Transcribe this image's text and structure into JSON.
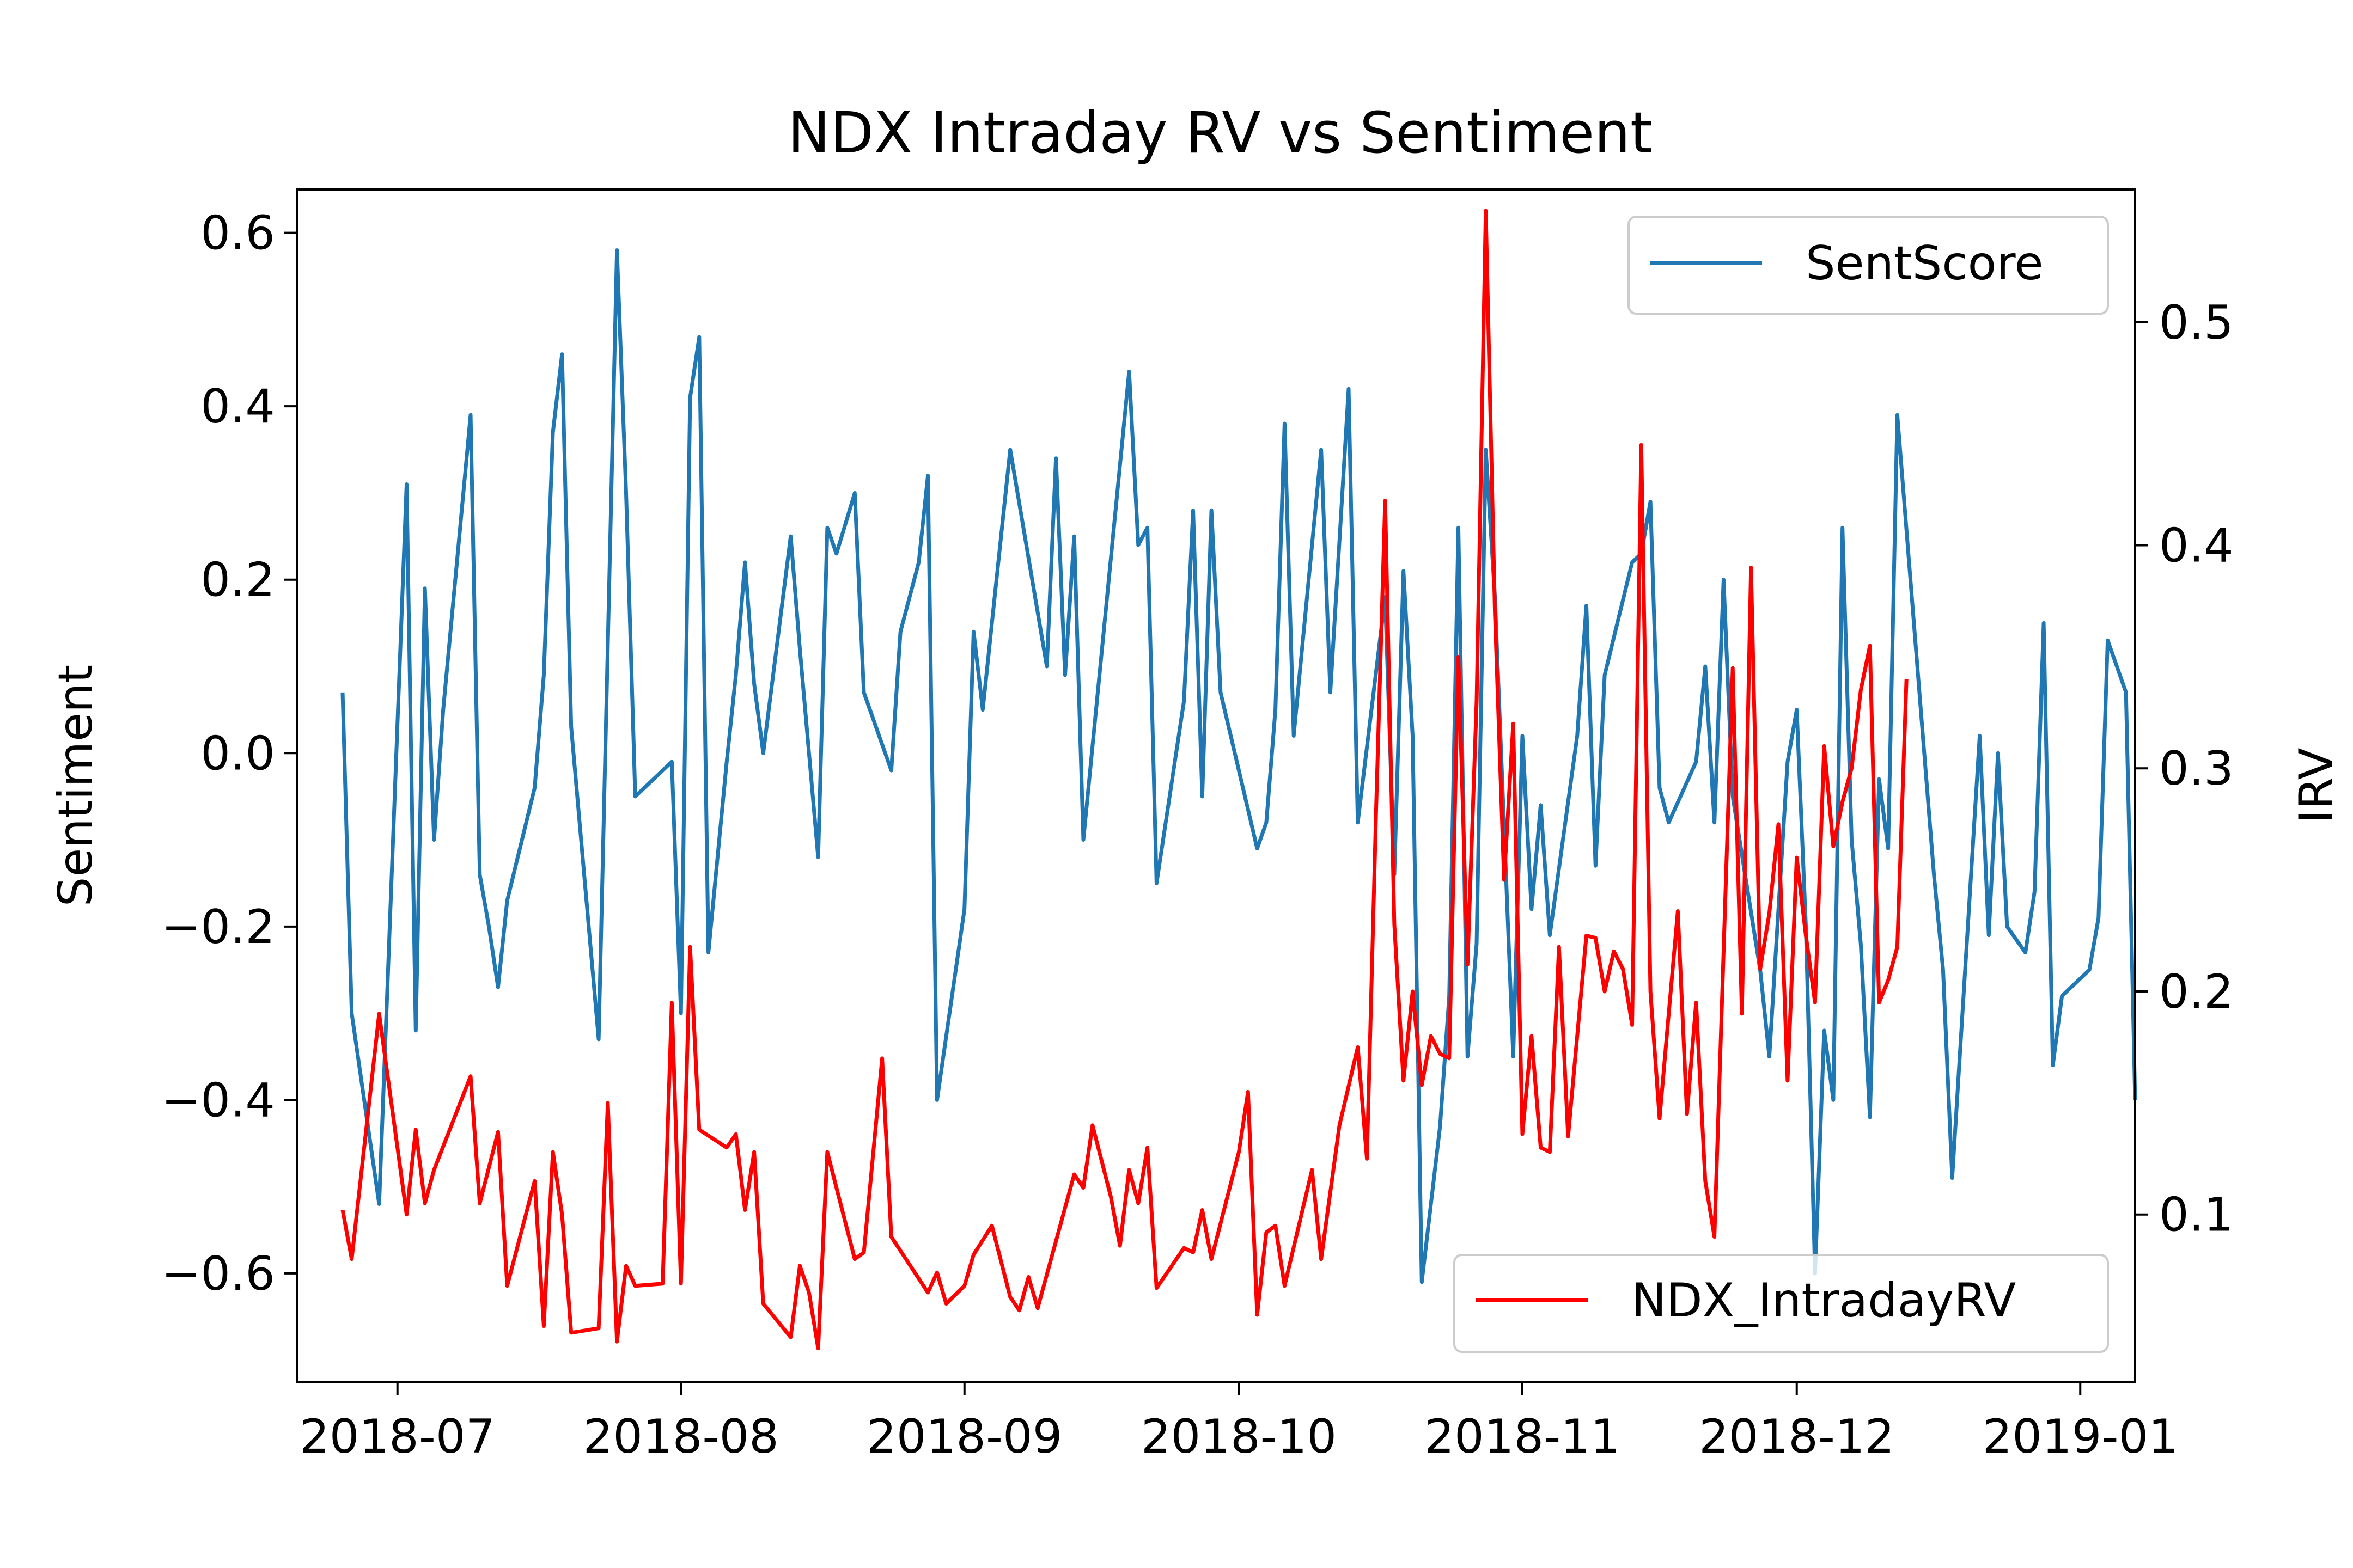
{
  "chart_data": {
    "type": "line",
    "title": "NDX Intraday RV  vs Sentiment",
    "xlabel": "",
    "ylabel_left": "Sentiment",
    "ylabel_right": "IRV",
    "x_ticks": [
      "2018-07",
      "2018-08",
      "2018-09",
      "2018-10",
      "2018-11",
      "2018-12",
      "2019-01"
    ],
    "x_range": [
      "2018-06-20",
      "2019-01-07"
    ],
    "y_left_ticks": [
      "0.6",
      "0.4",
      "0.2",
      "0.0",
      "−0.2",
      "−0.4",
      "−0.6"
    ],
    "y_left_tick_values": [
      0.6,
      0.4,
      0.2,
      0.0,
      -0.2,
      -0.4,
      -0.6
    ],
    "y_left_range": [
      -0.725,
      0.65
    ],
    "y_right_ticks": [
      "0.5",
      "0.4",
      "0.3",
      "0.2",
      "0.1"
    ],
    "y_right_tick_values": [
      0.5,
      0.4,
      0.3,
      0.2,
      0.1
    ],
    "y_right_range": [
      0.025,
      0.5595
    ],
    "legend_left": {
      "label": "SentScore",
      "position": "upper right"
    },
    "legend_right": {
      "label": "NDX_IntradayRV",
      "position": "lower right"
    },
    "grid": false,
    "series": [
      {
        "name": "SentScore",
        "axis": "left",
        "color": "#1f77b4",
        "points": [
          [
            "2018-06-25",
            0.07
          ],
          [
            "2018-06-26",
            -0.3
          ],
          [
            "2018-06-29",
            -0.52
          ],
          [
            "2018-07-02",
            0.31
          ],
          [
            "2018-07-03",
            -0.32
          ],
          [
            "2018-07-04",
            0.19
          ],
          [
            "2018-07-05",
            -0.1
          ],
          [
            "2018-07-06",
            0.05
          ],
          [
            "2018-07-09",
            0.39
          ],
          [
            "2018-07-10",
            -0.14
          ],
          [
            "2018-07-11",
            -0.2
          ],
          [
            "2018-07-12",
            -0.27
          ],
          [
            "2018-07-13",
            -0.17
          ],
          [
            "2018-07-16",
            -0.04
          ],
          [
            "2018-07-17",
            0.09
          ],
          [
            "2018-07-18",
            0.37
          ],
          [
            "2018-07-19",
            0.46
          ],
          [
            "2018-07-20",
            0.03
          ],
          [
            "2018-07-23",
            -0.33
          ],
          [
            "2018-07-25",
            0.58
          ],
          [
            "2018-07-26",
            0.3
          ],
          [
            "2018-07-27",
            -0.05
          ],
          [
            "2018-07-30",
            -0.02
          ],
          [
            "2018-07-31",
            -0.01
          ],
          [
            "2018-08-01",
            -0.3
          ],
          [
            "2018-08-02",
            0.41
          ],
          [
            "2018-08-03",
            0.48
          ],
          [
            "2018-08-04",
            -0.23
          ],
          [
            "2018-08-06",
            -0.01
          ],
          [
            "2018-08-07",
            0.09
          ],
          [
            "2018-08-08",
            0.22
          ],
          [
            "2018-08-09",
            0.08
          ],
          [
            "2018-08-10",
            0.0
          ],
          [
            "2018-08-13",
            0.25
          ],
          [
            "2018-08-14",
            0.12
          ],
          [
            "2018-08-16",
            -0.12
          ],
          [
            "2018-08-17",
            0.26
          ],
          [
            "2018-08-18",
            0.23
          ],
          [
            "2018-08-20",
            0.3
          ],
          [
            "2018-08-21",
            0.07
          ],
          [
            "2018-08-24",
            -0.02
          ],
          [
            "2018-08-25",
            0.14
          ],
          [
            "2018-08-27",
            0.22
          ],
          [
            "2018-08-28",
            0.32
          ],
          [
            "2018-08-29",
            -0.4
          ],
          [
            "2018-09-01",
            -0.18
          ],
          [
            "2018-09-02",
            0.14
          ],
          [
            "2018-09-03",
            0.05
          ],
          [
            "2018-09-06",
            0.35
          ],
          [
            "2018-09-10",
            0.1
          ],
          [
            "2018-09-11",
            0.34
          ],
          [
            "2018-09-12",
            0.09
          ],
          [
            "2018-09-13",
            0.25
          ],
          [
            "2018-09-14",
            -0.1
          ],
          [
            "2018-09-19",
            0.44
          ],
          [
            "2018-09-20",
            0.24
          ],
          [
            "2018-09-21",
            0.26
          ],
          [
            "2018-09-22",
            -0.15
          ],
          [
            "2018-09-25",
            0.06
          ],
          [
            "2018-09-26",
            0.28
          ],
          [
            "2018-09-27",
            -0.05
          ],
          [
            "2018-09-28",
            0.28
          ],
          [
            "2018-09-29",
            0.07
          ],
          [
            "2018-10-03",
            -0.11
          ],
          [
            "2018-10-04",
            -0.08
          ],
          [
            "2018-10-05",
            0.05
          ],
          [
            "2018-10-06",
            0.38
          ],
          [
            "2018-10-07",
            0.02
          ],
          [
            "2018-10-10",
            0.35
          ],
          [
            "2018-10-11",
            0.07
          ],
          [
            "2018-10-13",
            0.42
          ],
          [
            "2018-10-14",
            -0.08
          ],
          [
            "2018-10-17",
            0.18
          ],
          [
            "2018-10-18",
            -0.14
          ],
          [
            "2018-10-19",
            0.21
          ],
          [
            "2018-10-20",
            0.02
          ],
          [
            "2018-10-21",
            -0.61
          ],
          [
            "2018-10-23",
            -0.43
          ],
          [
            "2018-10-24",
            -0.28
          ],
          [
            "2018-10-25",
            0.26
          ],
          [
            "2018-10-26",
            -0.35
          ],
          [
            "2018-10-27",
            -0.22
          ],
          [
            "2018-10-28",
            0.35
          ],
          [
            "2018-10-29",
            0.18
          ],
          [
            "2018-10-31",
            -0.35
          ],
          [
            "2018-11-01",
            0.02
          ],
          [
            "2018-11-02",
            -0.18
          ],
          [
            "2018-11-03",
            -0.06
          ],
          [
            "2018-11-04",
            -0.21
          ],
          [
            "2018-11-07",
            0.02
          ],
          [
            "2018-11-08",
            0.17
          ],
          [
            "2018-11-09",
            -0.13
          ],
          [
            "2018-11-10",
            0.09
          ],
          [
            "2018-11-13",
            0.22
          ],
          [
            "2018-11-14",
            0.23
          ],
          [
            "2018-11-15",
            0.29
          ],
          [
            "2018-11-16",
            -0.04
          ],
          [
            "2018-11-17",
            -0.08
          ],
          [
            "2018-11-20",
            -0.01
          ],
          [
            "2018-11-21",
            0.1
          ],
          [
            "2018-11-22",
            -0.08
          ],
          [
            "2018-11-23",
            0.2
          ],
          [
            "2018-11-24",
            -0.05
          ],
          [
            "2018-11-27",
            -0.25
          ],
          [
            "2018-11-28",
            -0.35
          ],
          [
            "2018-11-30",
            -0.01
          ],
          [
            "2018-12-01",
            0.05
          ],
          [
            "2018-12-02",
            -0.2
          ],
          [
            "2018-12-03",
            -0.6
          ],
          [
            "2018-12-04",
            -0.32
          ],
          [
            "2018-12-05",
            -0.4
          ],
          [
            "2018-12-06",
            0.26
          ],
          [
            "2018-12-07",
            -0.1
          ],
          [
            "2018-12-08",
            -0.22
          ],
          [
            "2018-12-09",
            -0.42
          ],
          [
            "2018-12-10",
            -0.03
          ],
          [
            "2018-12-11",
            -0.11
          ],
          [
            "2018-12-12",
            0.39
          ],
          [
            "2018-12-16",
            -0.14
          ],
          [
            "2018-12-17",
            -0.25
          ],
          [
            "2018-12-18",
            -0.49
          ],
          [
            "2018-12-21",
            0.02
          ],
          [
            "2018-12-22",
            -0.21
          ],
          [
            "2018-12-23",
            0.0
          ],
          [
            "2018-12-24",
            -0.2
          ],
          [
            "2018-12-26",
            -0.23
          ],
          [
            "2018-12-27",
            -0.16
          ],
          [
            "2018-12-28",
            0.15
          ],
          [
            "2018-12-29",
            -0.36
          ],
          [
            "2018-12-30",
            -0.28
          ],
          [
            "2019-01-02",
            -0.25
          ],
          [
            "2019-01-03",
            -0.19
          ],
          [
            "2019-01-04",
            0.13
          ],
          [
            "2019-01-05",
            0.1
          ],
          [
            "2019-01-06",
            0.07
          ],
          [
            "2019-01-07",
            -0.4
          ]
        ]
      },
      {
        "name": "NDX_IntradayRV",
        "axis": "right",
        "color": "#ff0000",
        "points": [
          [
            "2018-06-25",
            0.102
          ],
          [
            "2018-06-26",
            0.08
          ],
          [
            "2018-06-29",
            0.19
          ],
          [
            "2018-07-02",
            0.1
          ],
          [
            "2018-07-03",
            0.138
          ],
          [
            "2018-07-04",
            0.105
          ],
          [
            "2018-07-05",
            0.12
          ],
          [
            "2018-07-09",
            0.162
          ],
          [
            "2018-07-10",
            0.105
          ],
          [
            "2018-07-12",
            0.137
          ],
          [
            "2018-07-13",
            0.068
          ],
          [
            "2018-07-16",
            0.115
          ],
          [
            "2018-07-17",
            0.05
          ],
          [
            "2018-07-18",
            0.128
          ],
          [
            "2018-07-19",
            0.1
          ],
          [
            "2018-07-20",
            0.047
          ],
          [
            "2018-07-23",
            0.049
          ],
          [
            "2018-07-24",
            0.15
          ],
          [
            "2018-07-25",
            0.043
          ],
          [
            "2018-07-26",
            0.077
          ],
          [
            "2018-07-27",
            0.068
          ],
          [
            "2018-07-30",
            0.069
          ],
          [
            "2018-07-31",
            0.195
          ],
          [
            "2018-08-01",
            0.069
          ],
          [
            "2018-08-02",
            0.22
          ],
          [
            "2018-08-03",
            0.138
          ],
          [
            "2018-08-06",
            0.13
          ],
          [
            "2018-08-07",
            0.136
          ],
          [
            "2018-08-08",
            0.102
          ],
          [
            "2018-08-09",
            0.128
          ],
          [
            "2018-08-10",
            0.06
          ],
          [
            "2018-08-13",
            0.045
          ],
          [
            "2018-08-14",
            0.077
          ],
          [
            "2018-08-15",
            0.065
          ],
          [
            "2018-08-16",
            0.04
          ],
          [
            "2018-08-17",
            0.128
          ],
          [
            "2018-08-20",
            0.08
          ],
          [
            "2018-08-21",
            0.083
          ],
          [
            "2018-08-23",
            0.17
          ],
          [
            "2018-08-24",
            0.09
          ],
          [
            "2018-08-28",
            0.065
          ],
          [
            "2018-08-29",
            0.074
          ],
          [
            "2018-08-30",
            0.06
          ],
          [
            "2018-09-01",
            0.068
          ],
          [
            "2018-09-02",
            0.082
          ],
          [
            "2018-09-04",
            0.095
          ],
          [
            "2018-09-06",
            0.063
          ],
          [
            "2018-09-07",
            0.057
          ],
          [
            "2018-09-08",
            0.072
          ],
          [
            "2018-09-09",
            0.058
          ],
          [
            "2018-09-13",
            0.118
          ],
          [
            "2018-09-14",
            0.112
          ],
          [
            "2018-09-15",
            0.14
          ],
          [
            "2018-09-17",
            0.108
          ],
          [
            "2018-09-18",
            0.086
          ],
          [
            "2018-09-19",
            0.12
          ],
          [
            "2018-09-20",
            0.105
          ],
          [
            "2018-09-21",
            0.13
          ],
          [
            "2018-09-22",
            0.067
          ],
          [
            "2018-09-25",
            0.085
          ],
          [
            "2018-09-26",
            0.083
          ],
          [
            "2018-09-27",
            0.102
          ],
          [
            "2018-09-28",
            0.08
          ],
          [
            "2018-10-01",
            0.128
          ],
          [
            "2018-10-02",
            0.155
          ],
          [
            "2018-10-03",
            0.055
          ],
          [
            "2018-10-04",
            0.092
          ],
          [
            "2018-10-05",
            0.095
          ],
          [
            "2018-10-06",
            0.068
          ],
          [
            "2018-10-09",
            0.12
          ],
          [
            "2018-10-10",
            0.08
          ],
          [
            "2018-10-12",
            0.14
          ],
          [
            "2018-10-14",
            0.175
          ],
          [
            "2018-10-15",
            0.125
          ],
          [
            "2018-10-16",
            0.28
          ],
          [
            "2018-10-17",
            0.42
          ],
          [
            "2018-10-18",
            0.23
          ],
          [
            "2018-10-19",
            0.16
          ],
          [
            "2018-10-20",
            0.2
          ],
          [
            "2018-10-21",
            0.158
          ],
          [
            "2018-10-22",
            0.18
          ],
          [
            "2018-10-23",
            0.172
          ],
          [
            "2018-10-24",
            0.17
          ],
          [
            "2018-10-25",
            0.35
          ],
          [
            "2018-10-26",
            0.212
          ],
          [
            "2018-10-27",
            0.33
          ],
          [
            "2018-10-28",
            0.55
          ],
          [
            "2018-10-29",
            0.37
          ],
          [
            "2018-10-30",
            0.25
          ],
          [
            "2018-10-31",
            0.32
          ],
          [
            "2018-11-01",
            0.136
          ],
          [
            "2018-11-02",
            0.18
          ],
          [
            "2018-11-03",
            0.13
          ],
          [
            "2018-11-04",
            0.128
          ],
          [
            "2018-11-05",
            0.22
          ],
          [
            "2018-11-06",
            0.135
          ],
          [
            "2018-11-07",
            0.18
          ],
          [
            "2018-11-08",
            0.225
          ],
          [
            "2018-11-09",
            0.224
          ],
          [
            "2018-11-10",
            0.2
          ],
          [
            "2018-11-11",
            0.218
          ],
          [
            "2018-11-12",
            0.21
          ],
          [
            "2018-11-13",
            0.185
          ],
          [
            "2018-11-14",
            0.445
          ],
          [
            "2018-11-15",
            0.2
          ],
          [
            "2018-11-16",
            0.143
          ],
          [
            "2018-11-17",
            0.19
          ],
          [
            "2018-11-18",
            0.236
          ],
          [
            "2018-11-19",
            0.145
          ],
          [
            "2018-11-20",
            0.195
          ],
          [
            "2018-11-21",
            0.115
          ],
          [
            "2018-11-22",
            0.09
          ],
          [
            "2018-11-24",
            0.345
          ],
          [
            "2018-11-25",
            0.19
          ],
          [
            "2018-11-26",
            0.39
          ],
          [
            "2018-11-27",
            0.21
          ],
          [
            "2018-11-28",
            0.235
          ],
          [
            "2018-11-29",
            0.275
          ],
          [
            "2018-11-30",
            0.16
          ],
          [
            "2018-12-01",
            0.26
          ],
          [
            "2018-12-02",
            0.225
          ],
          [
            "2018-12-03",
            0.195
          ],
          [
            "2018-12-04",
            0.31
          ],
          [
            "2018-12-05",
            0.265
          ],
          [
            "2018-12-06",
            0.285
          ],
          [
            "2018-12-07",
            0.3
          ],
          [
            "2018-12-08",
            0.335
          ],
          [
            "2018-12-09",
            0.355
          ],
          [
            "2018-12-10",
            0.195
          ],
          [
            "2018-12-11",
            0.205
          ],
          [
            "2018-12-12",
            0.22
          ],
          [
            "2018-12-13",
            0.34
          ]
        ]
      }
    ]
  }
}
